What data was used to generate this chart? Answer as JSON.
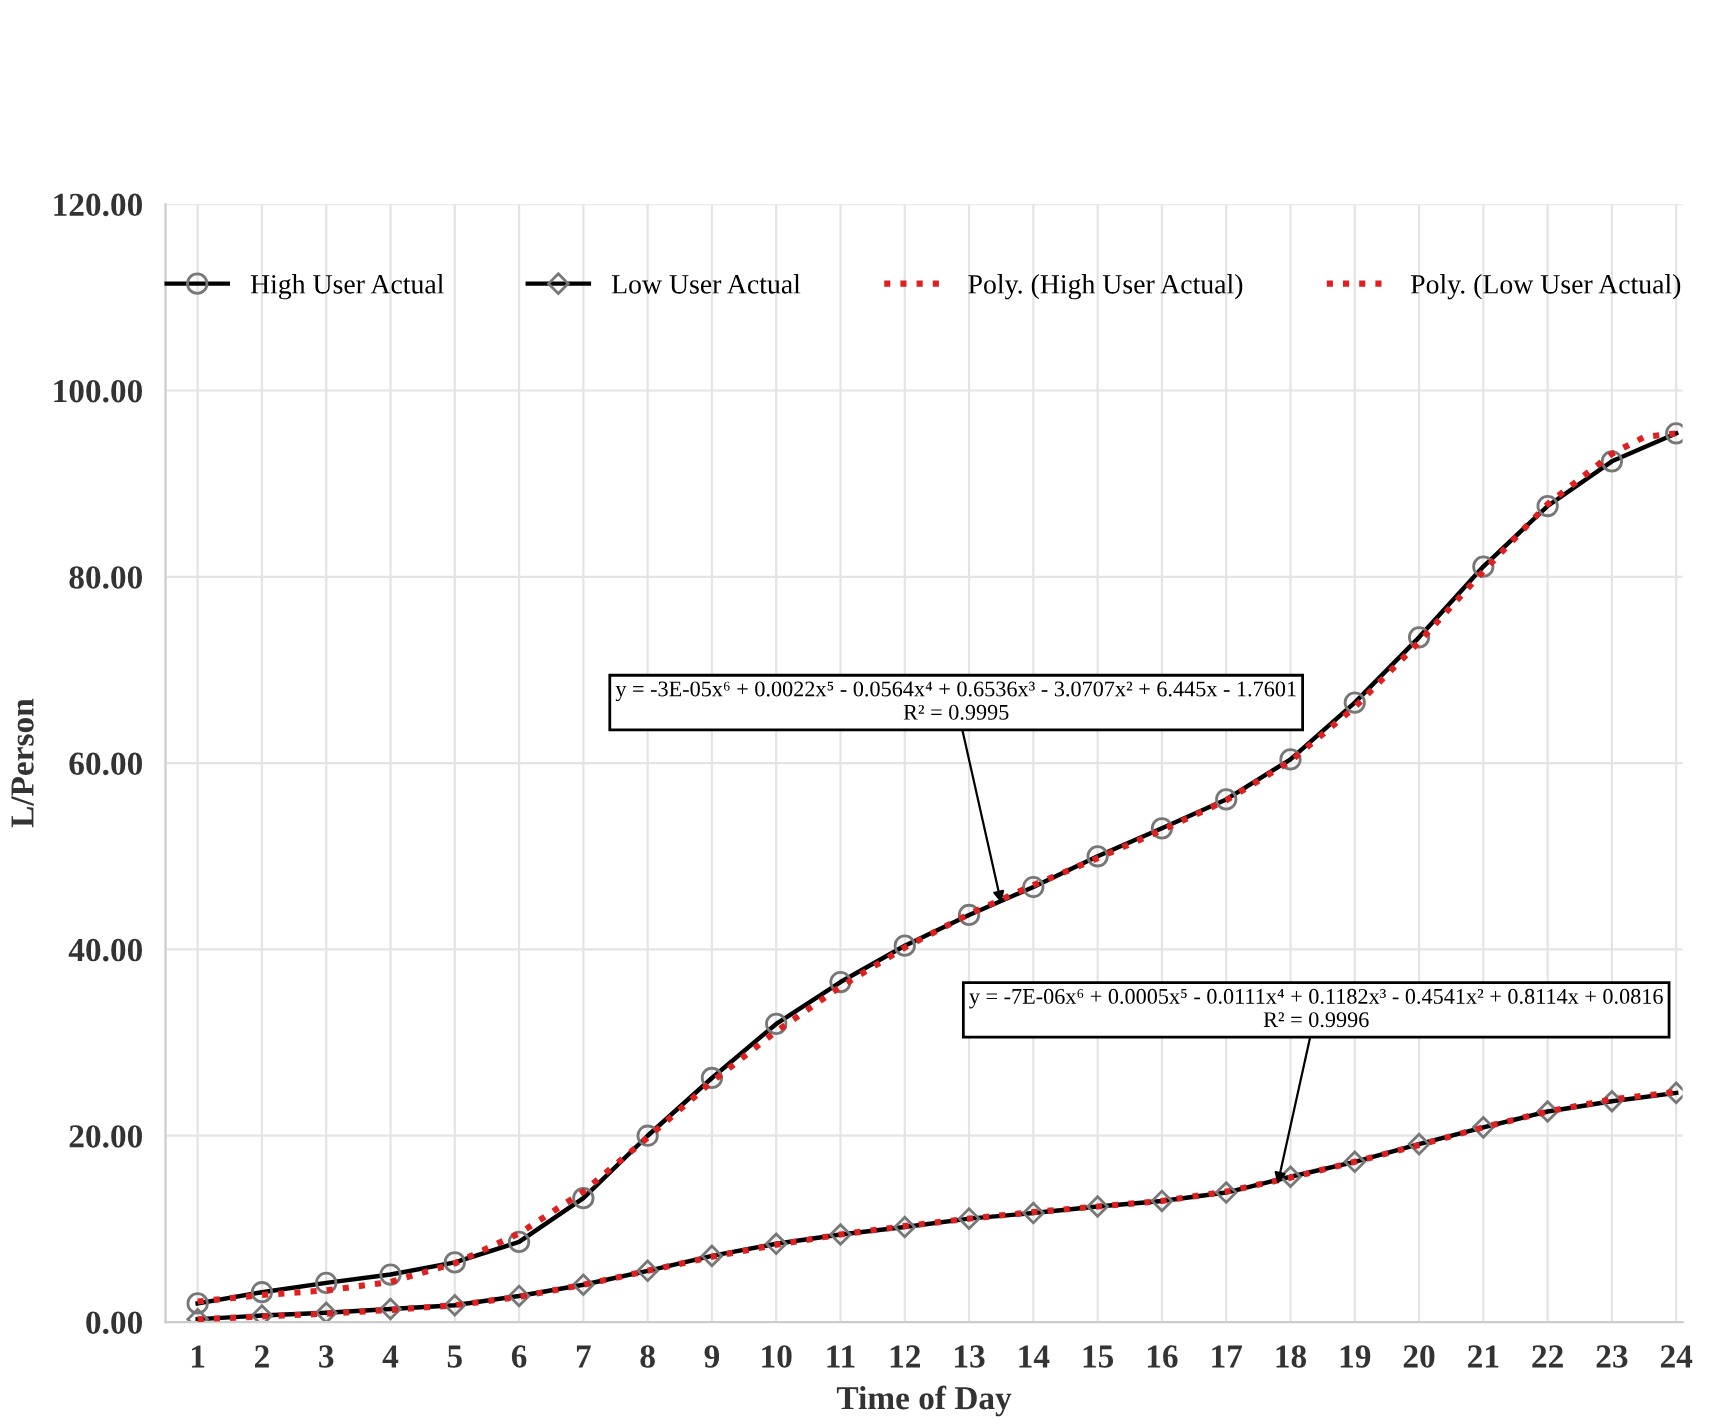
{
  "chart_data": {
    "type": "line",
    "xlabel": "Time of Day",
    "ylabel": "L/Person",
    "x": [
      1,
      2,
      3,
      4,
      5,
      6,
      7,
      8,
      9,
      10,
      11,
      12,
      13,
      14,
      15,
      16,
      17,
      18,
      19,
      20,
      21,
      22,
      23,
      24
    ],
    "xlim": [
      0.5,
      24.1
    ],
    "xticks": [
      1,
      2,
      3,
      4,
      5,
      6,
      7,
      8,
      9,
      10,
      11,
      12,
      13,
      14,
      15,
      16,
      17,
      18,
      19,
      20,
      21,
      22,
      23,
      24
    ],
    "ylim": [
      0,
      120
    ],
    "yticks": [
      {
        "value": 0,
        "label": "0.00"
      },
      {
        "value": 20,
        "label": "20.00"
      },
      {
        "value": 40,
        "label": "40.00"
      },
      {
        "value": 60,
        "label": "60.00"
      },
      {
        "value": 80,
        "label": "80.00"
      },
      {
        "value": 100,
        "label": "100.00"
      },
      {
        "value": 120,
        "label": "120.00"
      }
    ],
    "grid": true,
    "legend": "top",
    "series": [
      {
        "name": "High User Actual",
        "color": "#000000",
        "marker": "circle",
        "line_style": "solid",
        "values": [
          2.0,
          3.2,
          4.2,
          5.1,
          6.4,
          8.6,
          13.3,
          20.0,
          26.2,
          32.0,
          36.5,
          40.4,
          43.7,
          46.7,
          50.0,
          53.0,
          56.1,
          60.4,
          66.5,
          73.5,
          81.1,
          87.6,
          92.4,
          95.4
        ]
      },
      {
        "name": "Low User Actual",
        "color": "#000000",
        "marker": "diamond",
        "line_style": "solid",
        "values": [
          0.3,
          0.7,
          1.0,
          1.4,
          1.8,
          2.8,
          4.0,
          5.5,
          7.1,
          8.4,
          9.4,
          10.2,
          11.1,
          11.7,
          12.4,
          13.0,
          13.9,
          15.6,
          17.2,
          19.1,
          20.9,
          22.6,
          23.7,
          24.6
        ]
      },
      {
        "name": "Poly. (High User Actual)",
        "color": "#e02020",
        "marker": "none",
        "line_style": "dotted",
        "x": [
          1,
          2,
          3,
          4,
          5,
          6,
          7,
          8,
          9,
          10,
          11,
          12,
          13,
          14,
          15,
          16,
          17,
          18,
          19,
          20,
          21,
          22,
          23,
          23.5,
          24
        ],
        "values": [
          2.2,
          2.9,
          3.4,
          4.3,
          6.3,
          9.5,
          14.0,
          19.8,
          25.8,
          31.2,
          36.0,
          40.2,
          43.8,
          46.9,
          49.8,
          52.8,
          56.0,
          60.2,
          66.0,
          73.0,
          80.6,
          87.8,
          93.2,
          95.0,
          95.4
        ]
      },
      {
        "name": "Poly. (Low User Actual)",
        "color": "#e02020",
        "marker": "none",
        "line_style": "dotted",
        "values": [
          0.3,
          0.6,
          0.9,
          1.3,
          1.8,
          2.7,
          4.0,
          5.5,
          7.0,
          8.3,
          9.4,
          10.3,
          11.1,
          11.8,
          12.4,
          13.0,
          14.0,
          15.5,
          17.2,
          19.0,
          20.9,
          22.6,
          23.9,
          24.7
        ]
      }
    ],
    "annotations": [
      {
        "text": "y = -3E-05x⁶ + 0.0022x⁵ - 0.0564x⁴ + 0.6536x³ - 3.0707x² + 6.445x - 1.7601\nR² = 0.9995",
        "x": 13.5,
        "y": 45
      },
      {
        "text": "y = -7E-06x⁶ + 0.0005x⁵ - 0.0111x⁴ + 0.1182x³ - 0.4541x² + 0.8114x + 0.0816\nR² = 0.9996",
        "x": 17.8,
        "y": 14.8
      }
    ]
  }
}
